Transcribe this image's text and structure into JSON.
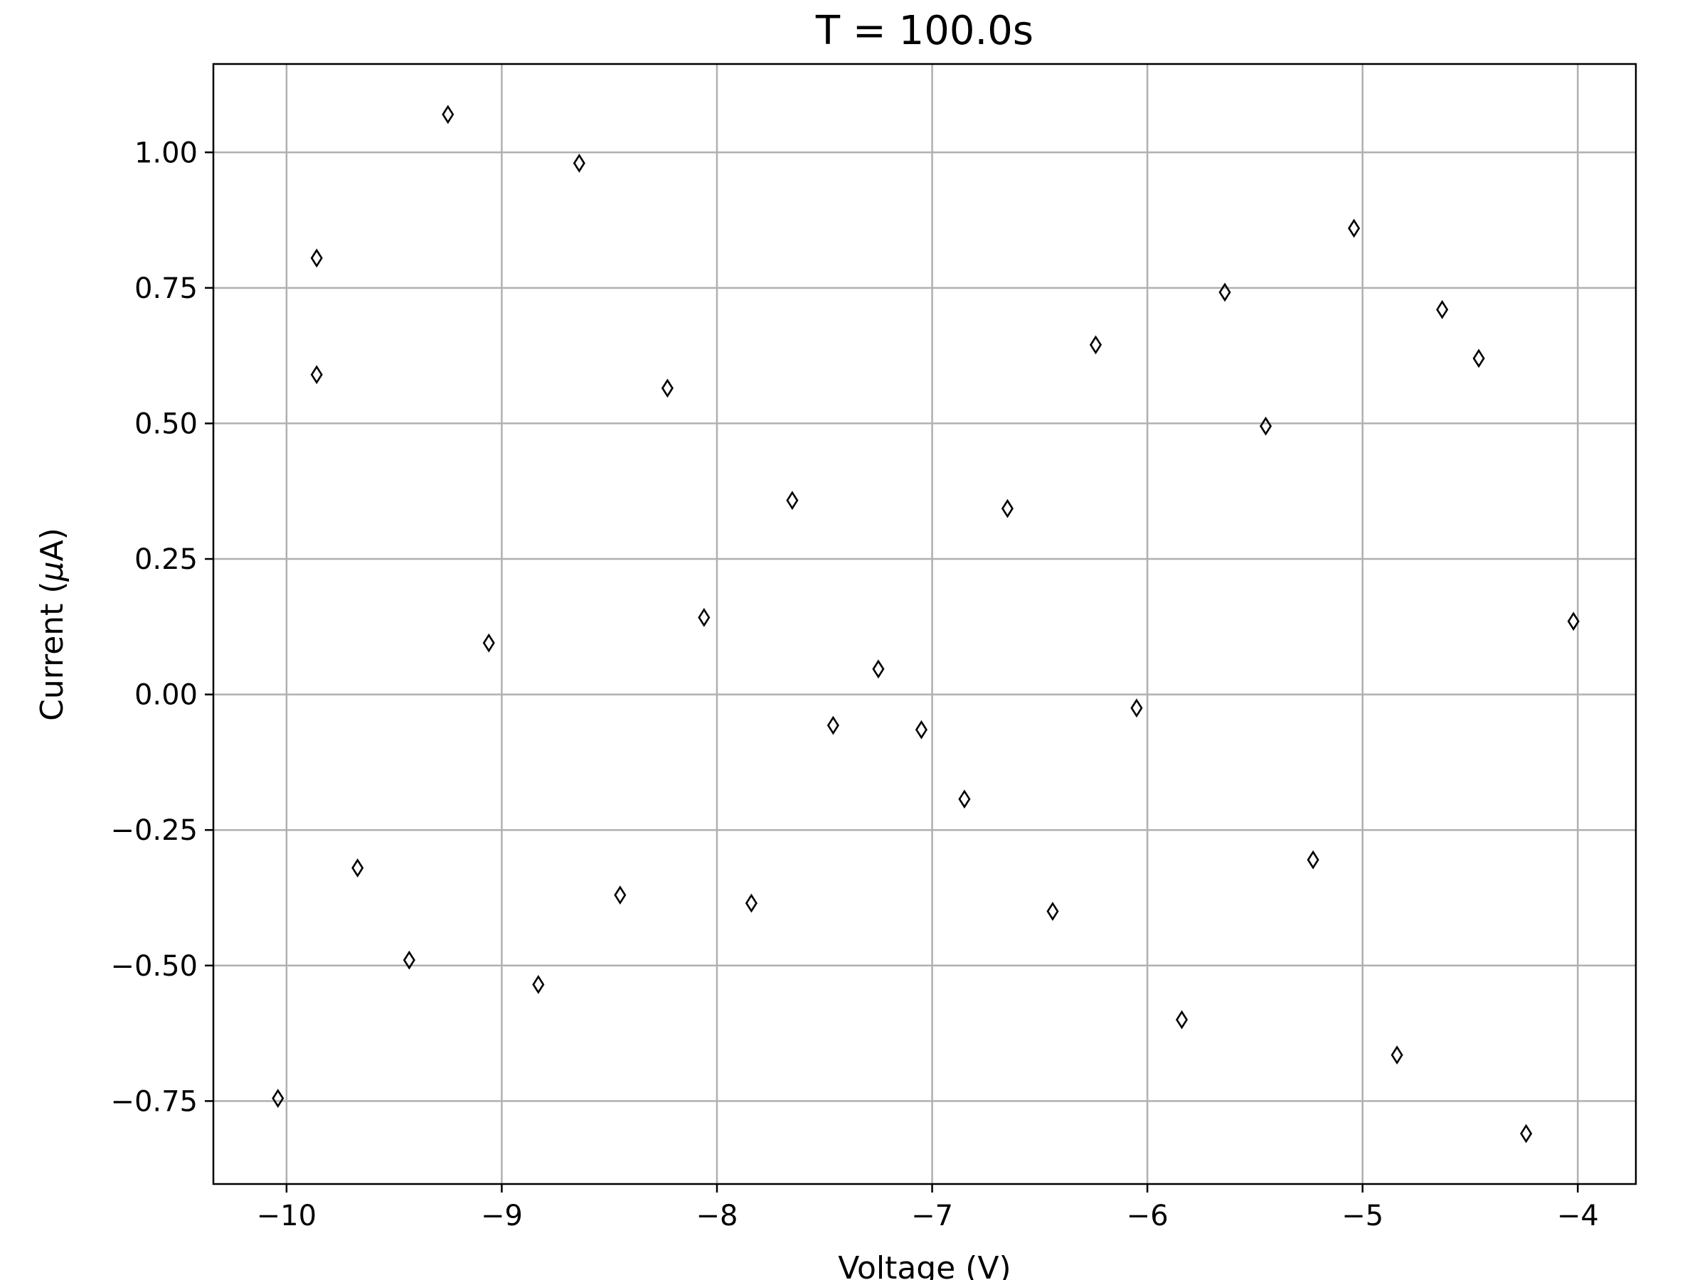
{
  "chart_data": {
    "type": "scatter",
    "title": "T = 100.0s",
    "xlabel": "Voltage (V)",
    "ylabel_prefix": "Current (",
    "ylabel_mu": "μ",
    "ylabel_suffix": "A)",
    "xlim": [
      -10.34,
      -3.73
    ],
    "ylim": [
      -0.903,
      1.163
    ],
    "x_ticks": [
      -10,
      -9,
      -8,
      -7,
      -6,
      -5,
      -4
    ],
    "x_tick_labels": [
      "−10",
      "−9",
      "−8",
      "−7",
      "−6",
      "−5",
      "−4"
    ],
    "y_ticks": [
      -0.75,
      -0.5,
      -0.25,
      0.0,
      0.25,
      0.5,
      0.75,
      1.0
    ],
    "y_tick_labels": [
      "−0.75",
      "−0.50",
      "−0.25",
      "0.00",
      "0.25",
      "0.50",
      "0.75",
      "1.00"
    ],
    "grid": true,
    "marker": "thin-diamond",
    "marker_color": "#000000",
    "grid_color": "#b0b0b0",
    "points": [
      [
        -10.04,
        -0.745
      ],
      [
        -9.86,
        0.805
      ],
      [
        -9.86,
        0.59
      ],
      [
        -9.67,
        -0.32
      ],
      [
        -9.43,
        -0.49
      ],
      [
        -9.25,
        1.07
      ],
      [
        -9.06,
        0.095
      ],
      [
        -8.83,
        -0.535
      ],
      [
        -8.64,
        0.98
      ],
      [
        -8.45,
        -0.37
      ],
      [
        -8.23,
        0.565
      ],
      [
        -8.06,
        0.142
      ],
      [
        -7.84,
        -0.385
      ],
      [
        -7.65,
        0.358
      ],
      [
        -7.46,
        -0.057
      ],
      [
        -7.25,
        0.047
      ],
      [
        -7.05,
        -0.065
      ],
      [
        -6.85,
        -0.193
      ],
      [
        -6.65,
        0.343
      ],
      [
        -6.44,
        -0.4
      ],
      [
        -6.24,
        0.645
      ],
      [
        -6.05,
        -0.025
      ],
      [
        -5.84,
        -0.6
      ],
      [
        -5.64,
        0.742
      ],
      [
        -5.45,
        0.495
      ],
      [
        -5.23,
        -0.305
      ],
      [
        -5.04,
        0.86
      ],
      [
        -4.84,
        -0.665
      ],
      [
        -4.63,
        0.71
      ],
      [
        -4.46,
        0.62
      ],
      [
        -4.24,
        -0.81
      ],
      [
        -4.02,
        0.135
      ]
    ]
  }
}
